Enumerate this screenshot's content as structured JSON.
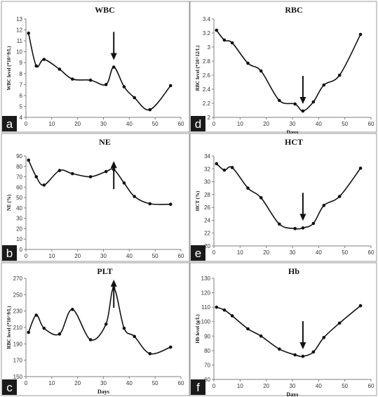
{
  "chart_data": [
    {
      "type": "line",
      "panel_letter": "a",
      "title": "WBC",
      "ylabel": "WBC level (*10^9/L)",
      "xlabel": "",
      "xticks": [
        0,
        10,
        20,
        30,
        40,
        50,
        60
      ],
      "yticks": [
        4,
        5,
        6,
        7,
        8,
        9,
        10,
        11,
        12,
        13
      ],
      "xlim": [
        0,
        60
      ],
      "ylim": [
        4,
        13
      ],
      "grid": false,
      "series": [
        {
          "x": [
            1,
            4,
            7,
            13,
            18,
            25,
            31,
            34,
            38,
            42,
            48,
            56
          ],
          "y": [
            11.7,
            8.7,
            9.3,
            8.4,
            7.5,
            7.4,
            7.0,
            8.6,
            6.8,
            5.8,
            4.7,
            6.9
          ]
        }
      ],
      "arrow": {
        "x": 34,
        "direction": "down"
      }
    },
    {
      "type": "line",
      "panel_letter": "d",
      "title": "RBC",
      "ylabel": "RBC level (*10^12/L)",
      "xlabel": "Days",
      "xticks": [
        0,
        10,
        20,
        30,
        40,
        50,
        60
      ],
      "yticks": [
        "2",
        "2.2",
        "2.4",
        "2.6",
        "2.8",
        "3",
        "3.2",
        "3.4"
      ],
      "xlim": [
        0,
        60
      ],
      "ylim": [
        2,
        3.4
      ],
      "grid": false,
      "series": [
        {
          "x": [
            1,
            4,
            7,
            13,
            18,
            25,
            31,
            34,
            38,
            42,
            48,
            56
          ],
          "y": [
            3.24,
            3.1,
            3.06,
            2.77,
            2.66,
            2.24,
            2.19,
            2.09,
            2.22,
            2.46,
            2.6,
            3.18
          ]
        }
      ],
      "arrow": {
        "x": 34,
        "direction": "down"
      }
    },
    {
      "type": "line",
      "panel_letter": "b",
      "title": "NE",
      "ylabel": "NE (%)",
      "xlabel": "",
      "xticks": [
        0,
        10,
        20,
        30,
        40,
        50,
        60
      ],
      "yticks": [
        0,
        10,
        20,
        30,
        40,
        50,
        60,
        70,
        80,
        90
      ],
      "xlim": [
        0,
        60
      ],
      "ylim": [
        0,
        90
      ],
      "grid": false,
      "series": [
        {
          "x": [
            1,
            4,
            7,
            13,
            18,
            25,
            31,
            34,
            38,
            42,
            48,
            56
          ],
          "y": [
            86,
            70,
            62,
            76,
            73,
            70,
            75,
            77,
            64,
            51,
            44,
            43.5
          ]
        }
      ],
      "arrow": {
        "x": 34,
        "direction": "up"
      }
    },
    {
      "type": "line",
      "panel_letter": "e",
      "title": "HCT",
      "ylabel": "HCT (%)",
      "xlabel": "",
      "xticks": [
        0,
        10,
        20,
        30,
        40,
        50,
        60
      ],
      "yticks": [
        20,
        22,
        24,
        26,
        28,
        30,
        32,
        34
      ],
      "xlim": [
        0,
        60
      ],
      "ylim": [
        20,
        34
      ],
      "grid": false,
      "series": [
        {
          "x": [
            1,
            4,
            7,
            13,
            18,
            25,
            31,
            34,
            38,
            42,
            48,
            56
          ],
          "y": [
            32.8,
            31.8,
            32.2,
            29.0,
            27.5,
            23.4,
            22.7,
            22.8,
            23.5,
            26.3,
            27.7,
            32.1
          ]
        }
      ],
      "arrow": {
        "x": 34,
        "direction": "down"
      }
    },
    {
      "type": "line",
      "panel_letter": "c",
      "title": "PLT",
      "ylabel": "RBC level (*10^9/L)",
      "xlabel": "Days",
      "xticks": [
        0,
        10,
        20,
        30,
        40,
        50,
        60
      ],
      "yticks": [
        150,
        170,
        190,
        210,
        230,
        250,
        270
      ],
      "xlim": [
        0,
        60
      ],
      "ylim": [
        150,
        270
      ],
      "grid": false,
      "series": [
        {
          "x": [
            1,
            4,
            7,
            13,
            18,
            25,
            31,
            34,
            38,
            42,
            48,
            56
          ],
          "y": [
            204,
            225,
            209,
            202,
            232,
            195,
            214,
            258,
            209,
            199,
            178,
            186
          ]
        }
      ],
      "arrow": {
        "x": 34,
        "direction": "up"
      }
    },
    {
      "type": "line",
      "panel_letter": "f",
      "title": "Hb",
      "ylabel": "Hb level (g/L)",
      "xlabel": "Days",
      "xticks": [
        0,
        10,
        20,
        30,
        40,
        50,
        60
      ],
      "yticks": [
        60,
        70,
        80,
        90,
        100,
        110,
        120,
        130
      ],
      "xlim": [
        0,
        60
      ],
      "ylim": [
        60,
        130
      ],
      "grid": false,
      "series": [
        {
          "x": [
            1,
            4,
            7,
            13,
            18,
            25,
            31,
            34,
            38,
            42,
            48,
            56
          ],
          "y": [
            110,
            108,
            104,
            95,
            90,
            81,
            77,
            76,
            79,
            89,
            99,
            111
          ]
        }
      ],
      "arrow": {
        "x": 34,
        "direction": "down"
      }
    }
  ]
}
